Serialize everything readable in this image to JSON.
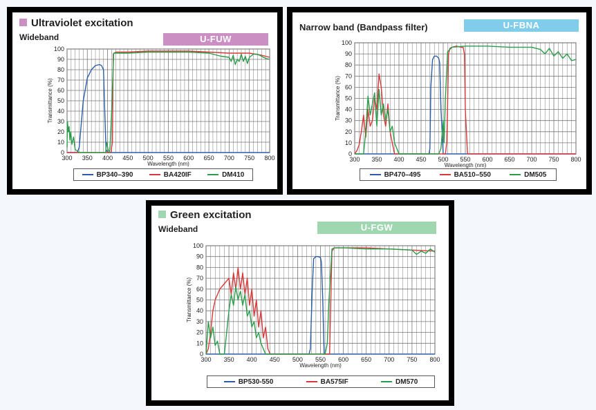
{
  "colors": {
    "blue": "#2a5caa",
    "red": "#d93838",
    "green": "#2a9d4a",
    "grid": "#777777"
  },
  "chart_data": [
    {
      "type": "line",
      "title": "Ultraviolet excitation",
      "subtitle": "Wideband",
      "code": "U-FUW",
      "code_color": "#cc8fc4",
      "title_marker_color": "#cc8fc4",
      "xlabel": "Wavelength (nm)",
      "ylabel": "Transmittance (%)",
      "xlim": [
        300,
        800
      ],
      "ylim": [
        0,
        100
      ],
      "xticks": [
        "300",
        "350",
        "400",
        "450",
        "500",
        "550",
        "600",
        "650",
        "700",
        "750",
        "800"
      ],
      "yticks": [
        "0",
        "10",
        "20",
        "30",
        "40",
        "50",
        "60",
        "70",
        "80",
        "90",
        "100"
      ],
      "series": [
        {
          "name": "BP340–390",
          "color": "#2a5caa",
          "x": [
            300,
            325,
            330,
            340,
            350,
            360,
            370,
            380,
            385,
            390,
            393,
            396,
            400,
            800
          ],
          "y": [
            0,
            0,
            5,
            50,
            72,
            80,
            84,
            85,
            84,
            80,
            40,
            3,
            0,
            0
          ]
        },
        {
          "name": "BA420IF",
          "color": "#d93838",
          "x": [
            300,
            400,
            408,
            412,
            414,
            420,
            450,
            500,
            550,
            600,
            650,
            700,
            750,
            780,
            800
          ],
          "y": [
            0,
            0,
            0,
            10,
            95,
            97,
            97,
            98,
            98,
            98,
            97,
            96,
            96,
            94,
            92
          ]
        },
        {
          "name": "DM410",
          "color": "#2a9d4a",
          "x": [
            300,
            301,
            303,
            305,
            307,
            309,
            312,
            316,
            320,
            330,
            350,
            380,
            395,
            398,
            401,
            404,
            406,
            410,
            415,
            450,
            500,
            550,
            600,
            650,
            680,
            700,
            705,
            710,
            715,
            720,
            725,
            730,
            735,
            740,
            745,
            750,
            760,
            770,
            780,
            790,
            800
          ],
          "y": [
            5,
            30,
            20,
            25,
            12,
            20,
            8,
            15,
            3,
            0,
            0,
            0,
            0,
            10,
            3,
            0,
            5,
            40,
            96,
            96,
            97,
            97,
            97,
            96,
            93,
            92,
            88,
            94,
            85,
            90,
            88,
            95,
            88,
            93,
            86,
            92,
            95,
            95,
            93,
            91,
            90
          ]
        }
      ],
      "legend": [
        "BP340–390",
        "BA420IF",
        "DM410"
      ]
    },
    {
      "type": "line",
      "title": "Narrow band (Bandpass filter)",
      "subtitle": "",
      "code": "U-FBNA",
      "code_color": "#7fcdea",
      "xlabel": "Wavelength (nm)",
      "ylabel": "Transmittance (%)",
      "xlim": [
        300,
        800
      ],
      "ylim": [
        0,
        100
      ],
      "xticks": [
        "300",
        "350",
        "400",
        "450",
        "500",
        "550",
        "600",
        "650",
        "700",
        "750",
        "800"
      ],
      "yticks": [
        "0",
        "10",
        "20",
        "30",
        "40",
        "50",
        "60",
        "70",
        "80",
        "90",
        "100"
      ],
      "series": [
        {
          "name": "BP470–495",
          "color": "#2a5caa",
          "x": [
            300,
            465,
            468,
            470,
            472,
            476,
            480,
            485,
            490,
            492,
            495,
            500,
            800
          ],
          "y": [
            0,
            0,
            0,
            5,
            60,
            85,
            88,
            88,
            86,
            82,
            40,
            0,
            0
          ]
        },
        {
          "name": "BA510–550",
          "color": "#d93838",
          "x": [
            300,
            305,
            310,
            315,
            320,
            325,
            330,
            335,
            340,
            345,
            350,
            355,
            360,
            365,
            370,
            375,
            380,
            385,
            390,
            500,
            505,
            508,
            510,
            512,
            515,
            520,
            530,
            540,
            545,
            548,
            550,
            555,
            800
          ],
          "y": [
            0,
            3,
            8,
            20,
            35,
            15,
            40,
            25,
            30,
            50,
            40,
            72,
            60,
            35,
            25,
            45,
            20,
            10,
            0,
            0,
            0,
            10,
            45,
            90,
            95,
            96,
            97,
            96,
            96,
            90,
            40,
            0,
            0
          ]
        },
        {
          "name": "DM505",
          "color": "#2a9d4a",
          "x": [
            300,
            320,
            325,
            330,
            335,
            340,
            345,
            350,
            355,
            360,
            365,
            370,
            375,
            380,
            385,
            390,
            395,
            400,
            490,
            495,
            500,
            502,
            505,
            510,
            520,
            550,
            600,
            650,
            700,
            720,
            730,
            740,
            750,
            760,
            770,
            780,
            790,
            800
          ],
          "y": [
            0,
            0,
            20,
            52,
            35,
            45,
            55,
            25,
            58,
            35,
            45,
            30,
            40,
            20,
            25,
            10,
            5,
            0,
            0,
            5,
            30,
            10,
            50,
            92,
            96,
            97,
            97,
            96,
            96,
            94,
            90,
            95,
            88,
            92,
            86,
            90,
            84,
            85
          ]
        }
      ],
      "legend": [
        "BP470–495",
        "BA510–550",
        "DM505"
      ]
    },
    {
      "type": "line",
      "title": "Green excitation",
      "subtitle": "Wideband",
      "code": "U-FGW",
      "code_color": "#9fd8b0",
      "title_marker_color": "#9fd8b0",
      "xlabel": "Wavelength (nm)",
      "ylabel": "Transmittance (%)",
      "xlim": [
        300,
        800
      ],
      "ylim": [
        0,
        100
      ],
      "xticks": [
        "300",
        "350",
        "400",
        "450",
        "500",
        "550",
        "600",
        "650",
        "700",
        "750",
        "800"
      ],
      "yticks": [
        "0",
        "10",
        "20",
        "30",
        "40",
        "50",
        "60",
        "70",
        "80",
        "90",
        "100"
      ],
      "series": [
        {
          "name": "BP530-550",
          "color": "#2a5caa",
          "x": [
            300,
            525,
            528,
            532,
            535,
            540,
            545,
            550,
            552,
            555,
            558,
            800
          ],
          "y": [
            0,
            0,
            5,
            60,
            88,
            90,
            90,
            89,
            85,
            50,
            0,
            0
          ]
        },
        {
          "name": "BA575IF",
          "color": "#d93838",
          "x": [
            300,
            305,
            310,
            315,
            320,
            330,
            340,
            350,
            355,
            360,
            365,
            370,
            375,
            380,
            385,
            390,
            395,
            400,
            405,
            410,
            415,
            420,
            425,
            430,
            435,
            440,
            565,
            570,
            572,
            575,
            580,
            600,
            650,
            700,
            750,
            800
          ],
          "y": [
            0,
            5,
            20,
            40,
            50,
            60,
            65,
            70,
            55,
            75,
            60,
            80,
            60,
            75,
            55,
            70,
            45,
            60,
            35,
            50,
            25,
            40,
            15,
            25,
            5,
            0,
            0,
            0,
            40,
            95,
            98,
            98,
            98,
            97,
            96,
            95
          ]
        },
        {
          "name": "DM570",
          "color": "#2a9d4a",
          "x": [
            300,
            305,
            310,
            315,
            320,
            325,
            330,
            340,
            350,
            355,
            360,
            365,
            370,
            375,
            380,
            385,
            390,
            395,
            400,
            405,
            410,
            415,
            420,
            430,
            560,
            565,
            568,
            570,
            575,
            580,
            600,
            650,
            700,
            750,
            760,
            770,
            780,
            790,
            800
          ],
          "y": [
            0,
            30,
            15,
            25,
            8,
            12,
            0,
            0,
            40,
            55,
            45,
            62,
            50,
            58,
            45,
            55,
            35,
            40,
            25,
            30,
            15,
            20,
            10,
            0,
            0,
            10,
            45,
            60,
            97,
            98,
            98,
            97,
            97,
            96,
            92,
            95,
            93,
            97,
            94
          ]
        }
      ],
      "legend": [
        "BP530-550",
        "BA575IF",
        "DM570"
      ]
    }
  ]
}
